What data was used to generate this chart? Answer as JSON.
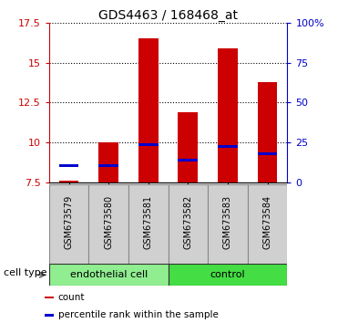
{
  "title": "GDS4463 / 168468_at",
  "samples": [
    "GSM673579",
    "GSM673580",
    "GSM673581",
    "GSM673582",
    "GSM673583",
    "GSM673584"
  ],
  "red_values": [
    7.6,
    10.0,
    16.5,
    11.9,
    15.9,
    13.8
  ],
  "blue_values": [
    8.55,
    8.55,
    9.85,
    8.9,
    9.75,
    9.3
  ],
  "ymin": 7.5,
  "ymax": 17.5,
  "yticks_left": [
    7.5,
    10.0,
    12.5,
    15.0,
    17.5
  ],
  "yright_labels": [
    "0",
    "25",
    "50",
    "75",
    "100%"
  ],
  "yright_ticks": [
    7.5,
    10.0,
    12.5,
    15.0,
    17.5
  ],
  "cell_type_groups": [
    {
      "label": "endothelial cell",
      "indices": [
        0,
        1,
        2
      ],
      "color": "#90EE90"
    },
    {
      "label": "control",
      "indices": [
        3,
        4,
        5
      ],
      "color": "#44DD44"
    }
  ],
  "cell_type_label": "cell type",
  "legend_items": [
    {
      "color": "#CC0000",
      "label": "count"
    },
    {
      "color": "#0000CC",
      "label": "percentile rank within the sample"
    }
  ],
  "bar_width": 0.5,
  "left_axis_color": "#CC0000",
  "right_axis_color": "#0000CC",
  "plot_bg": "white",
  "sample_box_color": "#d0d0d0",
  "sample_box_edge": "#888888"
}
